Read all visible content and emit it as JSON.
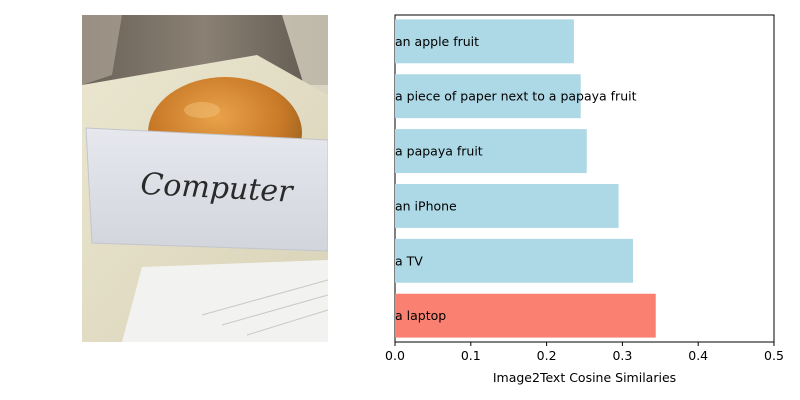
{
  "photo": {
    "handwritten_note": "Computer"
  },
  "chart_data": {
    "type": "bar",
    "orientation": "horizontal",
    "categories": [
      "a laptop",
      "a TV",
      "an iPhone",
      "a papaya fruit",
      "a piece of paper next to a papaya fruit",
      "an apple fruit"
    ],
    "values": [
      0.344,
      0.314,
      0.295,
      0.253,
      0.245,
      0.236
    ],
    "highlight_index": 0,
    "highlight_color": "#fa8072",
    "bar_color": "#add8e6",
    "xlabel": "Image2Text Cosine Similaries",
    "xlim": [
      0,
      0.5
    ],
    "xticks": [
      0,
      0.1,
      0.2,
      0.3,
      0.4,
      0.5
    ],
    "xtick_labels": [
      "0.0",
      "0.1",
      "0.2",
      "0.3",
      "0.4",
      "0.5"
    ],
    "grid": false
  }
}
